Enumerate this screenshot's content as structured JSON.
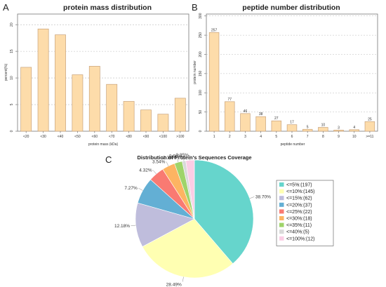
{
  "colors": {
    "bar_fill": "#FDDCAA",
    "bar_stroke": "#C8A27A",
    "axis": "#777777",
    "grid": "#BBBBBB",
    "text": "#222222"
  },
  "chart_data": [
    {
      "panel": "A",
      "type": "bar",
      "title": "protein mass distribution",
      "xlabel": "protein mass (kDa)",
      "ylabel": "percent(%)",
      "categories": [
        "<20",
        "<30",
        "<40",
        "<50",
        "<60",
        "<70",
        "<80",
        "<90",
        "<100",
        ">100"
      ],
      "values": [
        12.0,
        19.2,
        18.1,
        10.6,
        12.2,
        8.8,
        5.6,
        4.0,
        3.2,
        6.2
      ],
      "ylim": [
        0,
        22
      ],
      "yticks": [
        0,
        5,
        10,
        15,
        20
      ],
      "grid": true
    },
    {
      "panel": "B",
      "type": "bar",
      "title": "peptide number distribution",
      "xlabel": "peptide number",
      "ylabel": "protein number",
      "categories": [
        "1",
        "2",
        "3",
        "4",
        "5",
        "6",
        "7",
        "8",
        "9",
        "10",
        ">=11"
      ],
      "values": [
        257,
        77,
        46,
        38,
        27,
        17,
        5,
        10,
        3,
        4,
        25
      ],
      "data_labels": [
        "257",
        "77",
        "46",
        "38",
        "27",
        "17",
        "5",
        "10",
        "3",
        "4",
        "25"
      ],
      "ylim": [
        0,
        305
      ],
      "yticks": [
        0,
        50,
        100,
        150,
        200,
        250,
        300
      ],
      "grid": true
    },
    {
      "panel": "C",
      "type": "pie",
      "title": "Distribution of Protein's Sequences Coverage",
      "legend_position": "right",
      "slices": [
        {
          "label": "<=5%:(197)",
          "value": 38.7,
          "pct_label": "38.70%",
          "color": "#66D5CC"
        },
        {
          "label": "<=10%:(145)",
          "value": 28.49,
          "pct_label": "28.49%",
          "color": "#FFFFB2"
        },
        {
          "label": "<=15%:(62)",
          "value": 12.18,
          "pct_label": "12.18%",
          "color": "#BFBDDC"
        },
        {
          "label": "<=20%:(37)",
          "value": 7.27,
          "pct_label": "7.27%",
          "color": "#63AFD4"
        },
        {
          "label": "<=25%:(22)",
          "value": 4.32,
          "pct_label": "4.32%",
          "color": "#F97A72"
        },
        {
          "label": "<=30%:(18)",
          "value": 3.54,
          "pct_label": "3.54%",
          "color": "#FDB462"
        },
        {
          "label": "<=35%:(11)",
          "value": 2.16,
          "pct_label": "2.16%",
          "color": "#9FD46A"
        },
        {
          "label": "<=40%:(5)",
          "value": 0.98,
          "pct_label": "0.98%",
          "color": "#D9D9D9"
        },
        {
          "label": "<=100%:(12)",
          "value": 2.35,
          "pct_label": "2.35%",
          "color": "#FBCDE5"
        }
      ]
    }
  ]
}
